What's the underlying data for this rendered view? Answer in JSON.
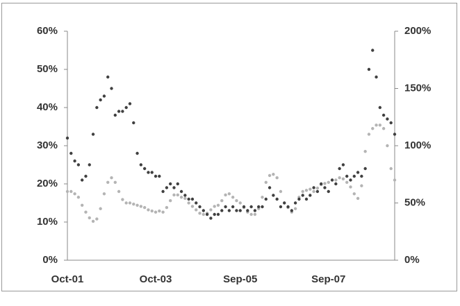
{
  "chart_data": {
    "type": "scatter",
    "categories": [
      "Oct-01",
      null,
      null,
      null,
      null,
      null,
      null,
      null,
      null,
      null,
      null,
      null,
      null,
      null,
      null,
      null,
      null,
      null,
      null,
      null,
      null,
      null,
      null,
      null,
      "Oct-03",
      null,
      null,
      null,
      null,
      null,
      null,
      null,
      null,
      null,
      null,
      null,
      null,
      null,
      null,
      null,
      null,
      null,
      null,
      null,
      null,
      null,
      null,
      "Sep-05",
      null,
      null,
      null,
      null,
      null,
      null,
      null,
      null,
      null,
      null,
      null,
      null,
      null,
      null,
      null,
      null,
      null,
      null,
      null,
      null,
      null,
      null,
      null,
      "Sep-07",
      null,
      null,
      null,
      null,
      null,
      null,
      null,
      null,
      null,
      null,
      null,
      null,
      null,
      null,
      null,
      null,
      null,
      null
    ],
    "series": [
      {
        "color": "#404040",
        "axis": "y",
        "values": [
          32,
          28,
          26,
          25,
          21,
          22,
          25,
          33,
          40,
          42,
          43,
          48,
          45,
          38,
          39,
          39,
          40,
          41,
          36,
          28,
          25,
          24,
          23,
          23,
          22,
          22,
          18,
          19,
          20,
          19,
          20,
          18,
          17,
          16,
          16,
          15,
          14,
          13,
          12,
          11,
          12,
          12,
          13,
          14,
          13,
          14,
          13,
          13,
          14,
          13,
          14,
          13,
          14,
          14,
          16,
          19,
          17,
          16,
          14,
          15,
          14,
          13,
          15,
          16,
          17,
          16,
          17,
          19,
          18,
          20,
          19,
          18,
          21,
          20,
          24,
          25,
          22,
          21,
          22,
          23,
          22,
          24,
          50,
          55,
          48,
          40,
          38,
          37,
          36,
          33
        ]
      },
      {
        "color": "#b4b4b4",
        "axis": "y2",
        "values": [
          60,
          60,
          58,
          55,
          48,
          42,
          37,
          34,
          36,
          45,
          58,
          68,
          72,
          68,
          60,
          53,
          50,
          50,
          49,
          48,
          47,
          46,
          44,
          43,
          42,
          43,
          42,
          46,
          52,
          57,
          57,
          55,
          54,
          50,
          47,
          44,
          41,
          40,
          41,
          44,
          47,
          48,
          52,
          57,
          58,
          55,
          52,
          50,
          46,
          42,
          40,
          40,
          45,
          55,
          68,
          74,
          75,
          72,
          60,
          50,
          46,
          42,
          45,
          55,
          60,
          61,
          62,
          60,
          63,
          66,
          67,
          68,
          70,
          70,
          72,
          71,
          68,
          64,
          58,
          54,
          65,
          95,
          110,
          115,
          118,
          118,
          115,
          100,
          80,
          70
        ]
      }
    ],
    "ylim": [
      0,
      60
    ],
    "yticks": [
      {
        "value": 0,
        "label": "0%"
      },
      {
        "value": 10,
        "label": "10%"
      },
      {
        "value": 20,
        "label": "20%"
      },
      {
        "value": 30,
        "label": "30%"
      },
      {
        "value": 40,
        "label": "40%"
      },
      {
        "value": 50,
        "label": "50%"
      },
      {
        "value": 60,
        "label": "60%"
      }
    ],
    "y2lim": [
      0,
      200
    ],
    "y2ticks": [
      {
        "value": 0,
        "label": "0%"
      },
      {
        "value": 50,
        "label": "50%"
      },
      {
        "value": 100,
        "label": "100%"
      },
      {
        "value": 150,
        "label": "150%"
      },
      {
        "value": 200,
        "label": "200%"
      }
    ],
    "grid": false
  }
}
